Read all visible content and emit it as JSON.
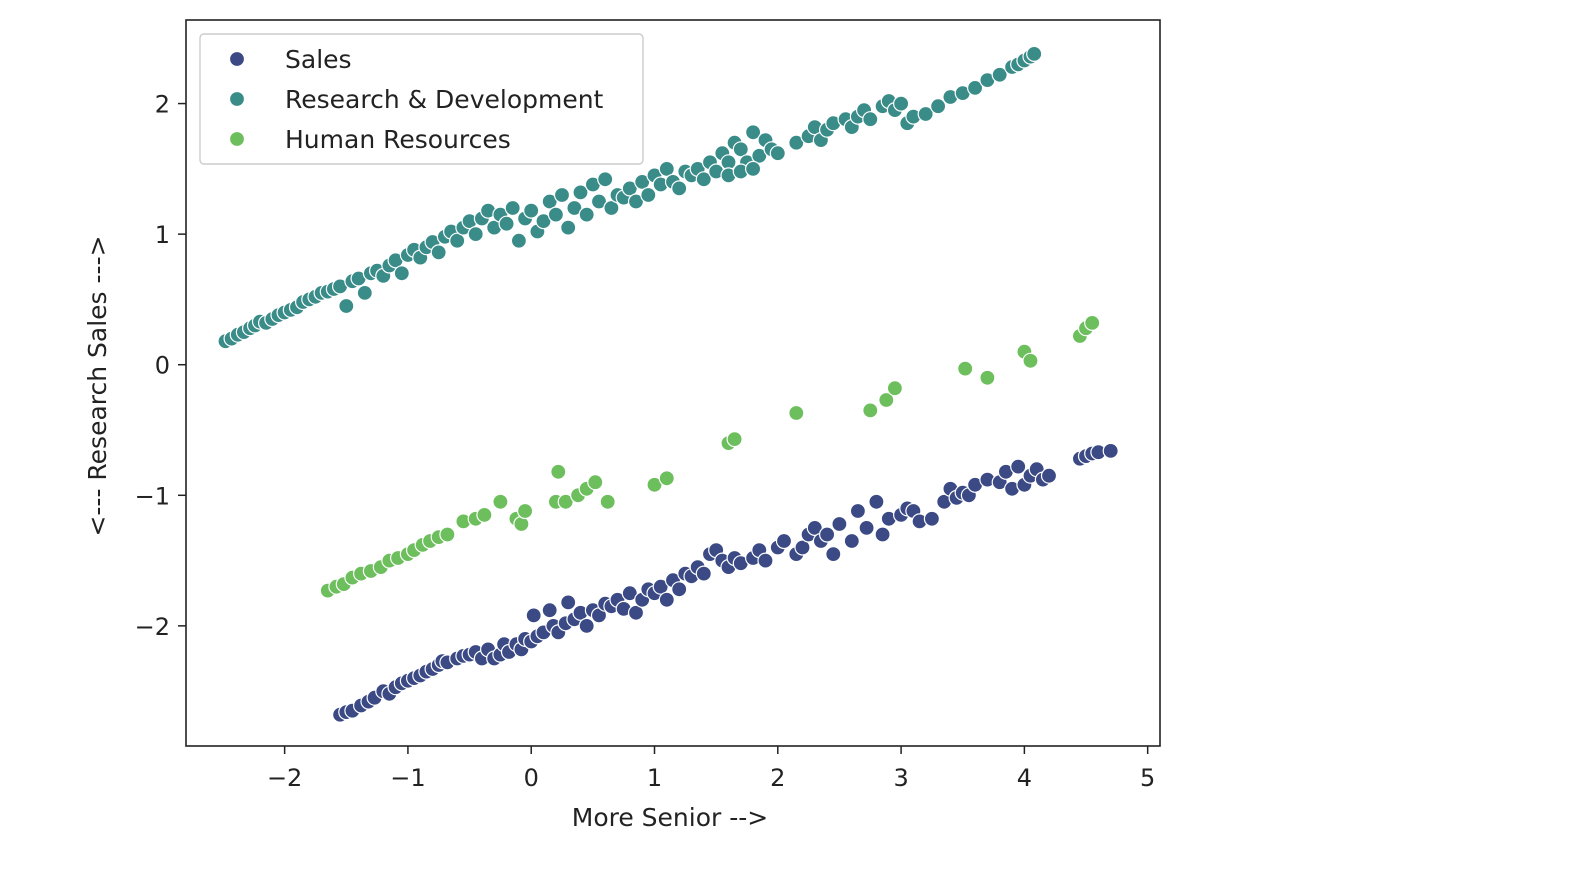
{
  "chart_data": {
    "type": "scatter",
    "xlabel": "More Senior -->",
    "ylabel": "<--- Research  Sales --->",
    "xlim": [
      -2.8,
      5.1
    ],
    "ylim": [
      -2.92,
      2.64
    ],
    "x_ticks": [
      -2,
      -1,
      0,
      1,
      2,
      3,
      4,
      5
    ],
    "x_tick_labels": [
      "−2",
      "−1",
      "0",
      "1",
      "2",
      "3",
      "4",
      "5"
    ],
    "y_ticks": [
      -2,
      -1,
      0,
      1,
      2
    ],
    "y_tick_labels": [
      "−2",
      "−1",
      "0",
      "1",
      "2"
    ],
    "grid": false,
    "legend_position": "top-left",
    "series": [
      {
        "name": "Sales",
        "color": "#3b4a85",
        "points": [
          [
            -1.55,
            -2.68
          ],
          [
            -1.5,
            -2.66
          ],
          [
            -1.45,
            -2.65
          ],
          [
            -1.38,
            -2.61
          ],
          [
            -1.32,
            -2.58
          ],
          [
            -1.27,
            -2.55
          ],
          [
            -1.2,
            -2.5
          ],
          [
            -1.15,
            -2.52
          ],
          [
            -1.1,
            -2.47
          ],
          [
            -1.05,
            -2.44
          ],
          [
            -1.0,
            -2.42
          ],
          [
            -0.95,
            -2.4
          ],
          [
            -0.9,
            -2.38
          ],
          [
            -0.85,
            -2.35
          ],
          [
            -0.8,
            -2.33
          ],
          [
            -0.75,
            -2.3
          ],
          [
            -0.72,
            -2.27
          ],
          [
            -0.68,
            -2.28
          ],
          [
            -0.6,
            -2.25
          ],
          [
            -0.55,
            -2.23
          ],
          [
            -0.5,
            -2.22
          ],
          [
            -0.45,
            -2.2
          ],
          [
            -0.4,
            -2.25
          ],
          [
            -0.35,
            -2.18
          ],
          [
            -0.3,
            -2.25
          ],
          [
            -0.25,
            -2.22
          ],
          [
            -0.22,
            -2.14
          ],
          [
            -0.18,
            -2.2
          ],
          [
            -0.12,
            -2.14
          ],
          [
            -0.08,
            -2.18
          ],
          [
            -0.05,
            -2.1
          ],
          [
            0.0,
            -2.12
          ],
          [
            0.02,
            -1.92
          ],
          [
            0.05,
            -2.08
          ],
          [
            0.1,
            -2.05
          ],
          [
            0.15,
            -1.88
          ],
          [
            0.18,
            -2.0
          ],
          [
            0.22,
            -2.05
          ],
          [
            0.28,
            -1.98
          ],
          [
            0.3,
            -1.82
          ],
          [
            0.35,
            -1.95
          ],
          [
            0.4,
            -1.9
          ],
          [
            0.45,
            -2.0
          ],
          [
            0.5,
            -1.88
          ],
          [
            0.55,
            -1.92
          ],
          [
            0.6,
            -1.83
          ],
          [
            0.65,
            -1.85
          ],
          [
            0.7,
            -1.8
          ],
          [
            0.75,
            -1.87
          ],
          [
            0.8,
            -1.75
          ],
          [
            0.85,
            -1.9
          ],
          [
            0.9,
            -1.8
          ],
          [
            0.95,
            -1.72
          ],
          [
            1.0,
            -1.75
          ],
          [
            1.05,
            -1.7
          ],
          [
            1.1,
            -1.8
          ],
          [
            1.15,
            -1.65
          ],
          [
            1.2,
            -1.72
          ],
          [
            1.25,
            -1.6
          ],
          [
            1.3,
            -1.62
          ],
          [
            1.35,
            -1.55
          ],
          [
            1.4,
            -1.6
          ],
          [
            1.45,
            -1.45
          ],
          [
            1.5,
            -1.42
          ],
          [
            1.55,
            -1.5
          ],
          [
            1.6,
            -1.55
          ],
          [
            1.65,
            -1.48
          ],
          [
            1.7,
            -1.52
          ],
          [
            1.8,
            -1.48
          ],
          [
            1.85,
            -1.42
          ],
          [
            1.9,
            -1.5
          ],
          [
            2.0,
            -1.4
          ],
          [
            2.05,
            -1.35
          ],
          [
            2.15,
            -1.45
          ],
          [
            2.2,
            -1.4
          ],
          [
            2.25,
            -1.3
          ],
          [
            2.3,
            -1.25
          ],
          [
            2.35,
            -1.35
          ],
          [
            2.4,
            -1.3
          ],
          [
            2.45,
            -1.45
          ],
          [
            2.5,
            -1.22
          ],
          [
            2.6,
            -1.35
          ],
          [
            2.65,
            -1.12
          ],
          [
            2.72,
            -1.25
          ],
          [
            2.8,
            -1.05
          ],
          [
            2.85,
            -1.3
          ],
          [
            2.9,
            -1.18
          ],
          [
            3.0,
            -1.15
          ],
          [
            3.05,
            -1.1
          ],
          [
            3.1,
            -1.12
          ],
          [
            3.15,
            -1.2
          ],
          [
            3.25,
            -1.18
          ],
          [
            3.35,
            -1.05
          ],
          [
            3.4,
            -0.95
          ],
          [
            3.45,
            -1.02
          ],
          [
            3.5,
            -0.98
          ],
          [
            3.55,
            -1.0
          ],
          [
            3.6,
            -0.92
          ],
          [
            3.7,
            -0.88
          ],
          [
            3.8,
            -0.9
          ],
          [
            3.85,
            -0.82
          ],
          [
            3.9,
            -0.95
          ],
          [
            3.95,
            -0.78
          ],
          [
            4.0,
            -0.92
          ],
          [
            4.05,
            -0.85
          ],
          [
            4.1,
            -0.8
          ],
          [
            4.15,
            -0.88
          ],
          [
            4.2,
            -0.85
          ],
          [
            4.45,
            -0.72
          ],
          [
            4.5,
            -0.7
          ],
          [
            4.55,
            -0.68
          ],
          [
            4.6,
            -0.67
          ],
          [
            4.7,
            -0.66
          ]
        ]
      },
      {
        "name": "Research & Development",
        "color": "#3a8c89",
        "points": [
          [
            -2.48,
            0.18
          ],
          [
            -2.43,
            0.2
          ],
          [
            -2.38,
            0.23
          ],
          [
            -2.33,
            0.25
          ],
          [
            -2.28,
            0.28
          ],
          [
            -2.24,
            0.3
          ],
          [
            -2.2,
            0.33
          ],
          [
            -2.15,
            0.32
          ],
          [
            -2.1,
            0.35
          ],
          [
            -2.05,
            0.38
          ],
          [
            -2.0,
            0.4
          ],
          [
            -1.95,
            0.42
          ],
          [
            -1.9,
            0.44
          ],
          [
            -1.85,
            0.48
          ],
          [
            -1.8,
            0.5
          ],
          [
            -1.75,
            0.52
          ],
          [
            -1.7,
            0.55
          ],
          [
            -1.65,
            0.56
          ],
          [
            -1.6,
            0.58
          ],
          [
            -1.55,
            0.6
          ],
          [
            -1.5,
            0.45
          ],
          [
            -1.45,
            0.64
          ],
          [
            -1.4,
            0.66
          ],
          [
            -1.35,
            0.55
          ],
          [
            -1.3,
            0.7
          ],
          [
            -1.25,
            0.72
          ],
          [
            -1.2,
            0.68
          ],
          [
            -1.15,
            0.76
          ],
          [
            -1.1,
            0.8
          ],
          [
            -1.05,
            0.7
          ],
          [
            -1.0,
            0.84
          ],
          [
            -0.95,
            0.88
          ],
          [
            -0.9,
            0.82
          ],
          [
            -0.85,
            0.9
          ],
          [
            -0.8,
            0.94
          ],
          [
            -0.75,
            0.86
          ],
          [
            -0.7,
            0.98
          ],
          [
            -0.65,
            1.02
          ],
          [
            -0.6,
            0.95
          ],
          [
            -0.55,
            1.05
          ],
          [
            -0.5,
            1.1
          ],
          [
            -0.45,
            1.0
          ],
          [
            -0.4,
            1.12
          ],
          [
            -0.35,
            1.18
          ],
          [
            -0.3,
            1.05
          ],
          [
            -0.25,
            1.15
          ],
          [
            -0.2,
            1.08
          ],
          [
            -0.15,
            1.2
          ],
          [
            -0.1,
            0.95
          ],
          [
            -0.05,
            1.12
          ],
          [
            0.0,
            1.18
          ],
          [
            0.05,
            1.02
          ],
          [
            0.1,
            1.1
          ],
          [
            0.15,
            1.25
          ],
          [
            0.2,
            1.15
          ],
          [
            0.25,
            1.3
          ],
          [
            0.3,
            1.05
          ],
          [
            0.35,
            1.2
          ],
          [
            0.4,
            1.32
          ],
          [
            0.45,
            1.15
          ],
          [
            0.5,
            1.38
          ],
          [
            0.55,
            1.25
          ],
          [
            0.6,
            1.42
          ],
          [
            0.65,
            1.2
          ],
          [
            0.7,
            1.3
          ],
          [
            0.75,
            1.28
          ],
          [
            0.8,
            1.35
          ],
          [
            0.85,
            1.25
          ],
          [
            0.9,
            1.4
          ],
          [
            0.95,
            1.3
          ],
          [
            1.0,
            1.45
          ],
          [
            1.05,
            1.38
          ],
          [
            1.1,
            1.5
          ],
          [
            1.15,
            1.4
          ],
          [
            1.2,
            1.35
          ],
          [
            1.25,
            1.48
          ],
          [
            1.3,
            1.45
          ],
          [
            1.35,
            1.5
          ],
          [
            1.4,
            1.42
          ],
          [
            1.45,
            1.55
          ],
          [
            1.5,
            1.48
          ],
          [
            1.55,
            1.62
          ],
          [
            1.6,
            1.55
          ],
          [
            1.65,
            1.7
          ],
          [
            1.7,
            1.65
          ],
          [
            1.75,
            1.55
          ],
          [
            1.8,
            1.78
          ],
          [
            1.85,
            1.6
          ],
          [
            1.9,
            1.72
          ],
          [
            1.95,
            1.65
          ],
          [
            1.6,
            1.45
          ],
          [
            1.7,
            1.48
          ],
          [
            1.8,
            1.5
          ],
          [
            2.0,
            1.62
          ],
          [
            2.15,
            1.7
          ],
          [
            2.25,
            1.75
          ],
          [
            2.3,
            1.82
          ],
          [
            2.35,
            1.72
          ],
          [
            2.4,
            1.8
          ],
          [
            2.45,
            1.85
          ],
          [
            2.55,
            1.88
          ],
          [
            2.6,
            1.82
          ],
          [
            2.65,
            1.9
          ],
          [
            2.7,
            1.95
          ],
          [
            2.75,
            1.88
          ],
          [
            2.85,
            1.98
          ],
          [
            2.9,
            2.02
          ],
          [
            2.95,
            1.95
          ],
          [
            3.0,
            2.0
          ],
          [
            3.05,
            1.85
          ],
          [
            3.1,
            1.9
          ],
          [
            3.2,
            1.92
          ],
          [
            3.3,
            1.98
          ],
          [
            3.4,
            2.05
          ],
          [
            3.5,
            2.08
          ],
          [
            3.6,
            2.12
          ],
          [
            3.7,
            2.18
          ],
          [
            3.8,
            2.22
          ],
          [
            3.9,
            2.28
          ],
          [
            3.95,
            2.3
          ],
          [
            4.0,
            2.33
          ],
          [
            4.05,
            2.36
          ],
          [
            4.08,
            2.38
          ]
        ]
      },
      {
        "name": "Human Resources",
        "color": "#6dbe5d",
        "points": [
          [
            -1.65,
            -1.73
          ],
          [
            -1.58,
            -1.7
          ],
          [
            -1.52,
            -1.68
          ],
          [
            -1.45,
            -1.63
          ],
          [
            -1.38,
            -1.6
          ],
          [
            -1.3,
            -1.58
          ],
          [
            -1.22,
            -1.55
          ],
          [
            -1.15,
            -1.5
          ],
          [
            -1.08,
            -1.48
          ],
          [
            -1.0,
            -1.45
          ],
          [
            -0.95,
            -1.42
          ],
          [
            -0.88,
            -1.38
          ],
          [
            -0.82,
            -1.35
          ],
          [
            -0.75,
            -1.32
          ],
          [
            -0.68,
            -1.3
          ],
          [
            -0.55,
            -1.2
          ],
          [
            -0.45,
            -1.18
          ],
          [
            -0.38,
            -1.15
          ],
          [
            -0.25,
            -1.05
          ],
          [
            -0.12,
            -1.18
          ],
          [
            -0.08,
            -1.22
          ],
          [
            -0.05,
            -1.12
          ],
          [
            0.2,
            -1.05
          ],
          [
            0.22,
            -0.82
          ],
          [
            0.28,
            -1.05
          ],
          [
            0.38,
            -1.0
          ],
          [
            0.45,
            -0.95
          ],
          [
            0.52,
            -0.9
          ],
          [
            0.62,
            -1.05
          ],
          [
            1.0,
            -0.92
          ],
          [
            1.1,
            -0.87
          ],
          [
            1.6,
            -0.6
          ],
          [
            1.65,
            -0.57
          ],
          [
            2.15,
            -0.37
          ],
          [
            2.75,
            -0.35
          ],
          [
            2.88,
            -0.27
          ],
          [
            2.95,
            -0.18
          ],
          [
            3.52,
            -0.03
          ],
          [
            3.7,
            -0.1
          ],
          [
            4.0,
            0.1
          ],
          [
            4.05,
            0.03
          ],
          [
            4.45,
            0.22
          ],
          [
            4.5,
            0.28
          ],
          [
            4.55,
            0.32
          ]
        ]
      }
    ]
  }
}
